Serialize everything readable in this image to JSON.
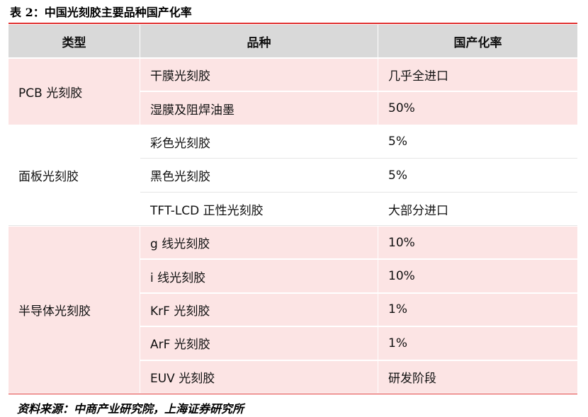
{
  "title": "表 2：中国光刻胶主要品种国产化率",
  "table": {
    "header": [
      "类型",
      "品种",
      "国产化率"
    ],
    "groups": [
      {
        "type": "PCB 光刻胶",
        "rows": [
          [
            "干膜光刻胶",
            "几乎全进口"
          ],
          [
            "湿膜及阻焊油墨",
            "50%"
          ]
        ]
      },
      {
        "type": "面板光刻胶",
        "rows": [
          [
            "彩色光刻胶",
            "5%"
          ],
          [
            "黑色光刻胶",
            "5%"
          ],
          [
            "TFT-LCD 正性光刻胶",
            "大部分进口"
          ]
        ]
      },
      {
        "type": "半导体光刻胶",
        "rows": [
          [
            "g 线光刻胶",
            "10%"
          ],
          [
            "i 线光刻胶",
            "10%"
          ],
          [
            "KrF 光刻胶",
            "1%"
          ],
          [
            "ArF 光刻胶",
            "1%"
          ],
          [
            "EUV 光刻胶",
            "研发阶段"
          ]
        ]
      }
    ]
  },
  "source": "资料来源：中商产业研究院，上海证券研究所"
}
